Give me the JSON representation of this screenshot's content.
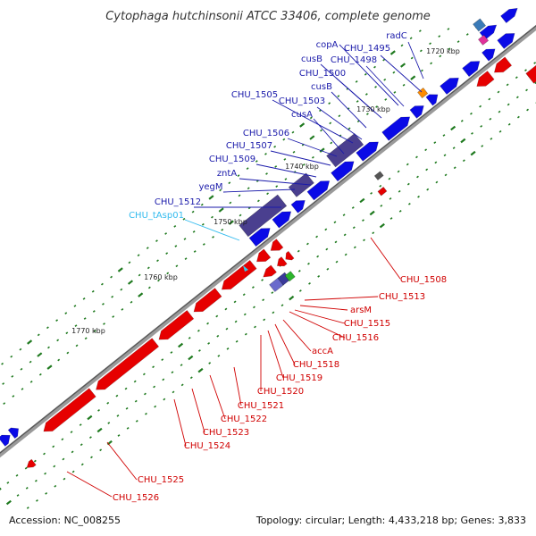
{
  "title": "Cytophaga hutchinsonii ATCC 33406, complete genome",
  "footer": {
    "accession": "Accession: NC_008255",
    "summary": "Topology: circular; Length: 4,433,218 bp; Genes: 3,833"
  },
  "colors": {
    "forward_cds": "#0000e6",
    "reverse_cds": "#e60000",
    "forward_label": "#1a1aaa",
    "reverse_label": "#d00000",
    "trna": "#33ccee",
    "backbone": "#888888",
    "tick": "#1f7a1f"
  },
  "scale_labels": [
    "1720 kbp",
    "1730 kbp",
    "1740 kbp",
    "1750 kbp",
    "1760 kbp",
    "1770 kbp"
  ],
  "forward_labels": [
    "radC",
    "copA",
    "CHU_1495",
    "cusB",
    "CHU_1498",
    "CHU_1500",
    "cusB",
    "CHU_1503",
    "CHU_1505",
    "cusA",
    "CHU_1506",
    "CHU_1507",
    "CHU_1509",
    "zntA",
    "yegM",
    "CHU_1512"
  ],
  "trna_labels": [
    "CHU_tAsp01"
  ],
  "reverse_labels": [
    "CHU_1508",
    "CHU_1513",
    "arsM",
    "CHU_1515",
    "CHU_1516",
    "accA",
    "CHU_1518",
    "CHU_1519",
    "CHU_1520",
    "CHU_1521",
    "CHU_1522",
    "CHU_1523",
    "CHU_1524",
    "CHU_1525",
    "CHU_1526"
  ]
}
